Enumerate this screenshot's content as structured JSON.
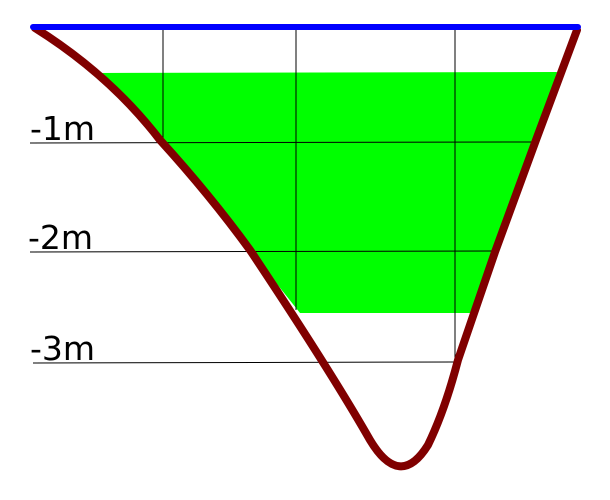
{
  "depth_labels": [
    "-1m",
    "-2m",
    "-3m"
  ],
  "colors": {
    "water_surface": "#0000ff",
    "riverbed": "#800000",
    "water_fill": "#00ff00",
    "grid": "#000000"
  }
}
